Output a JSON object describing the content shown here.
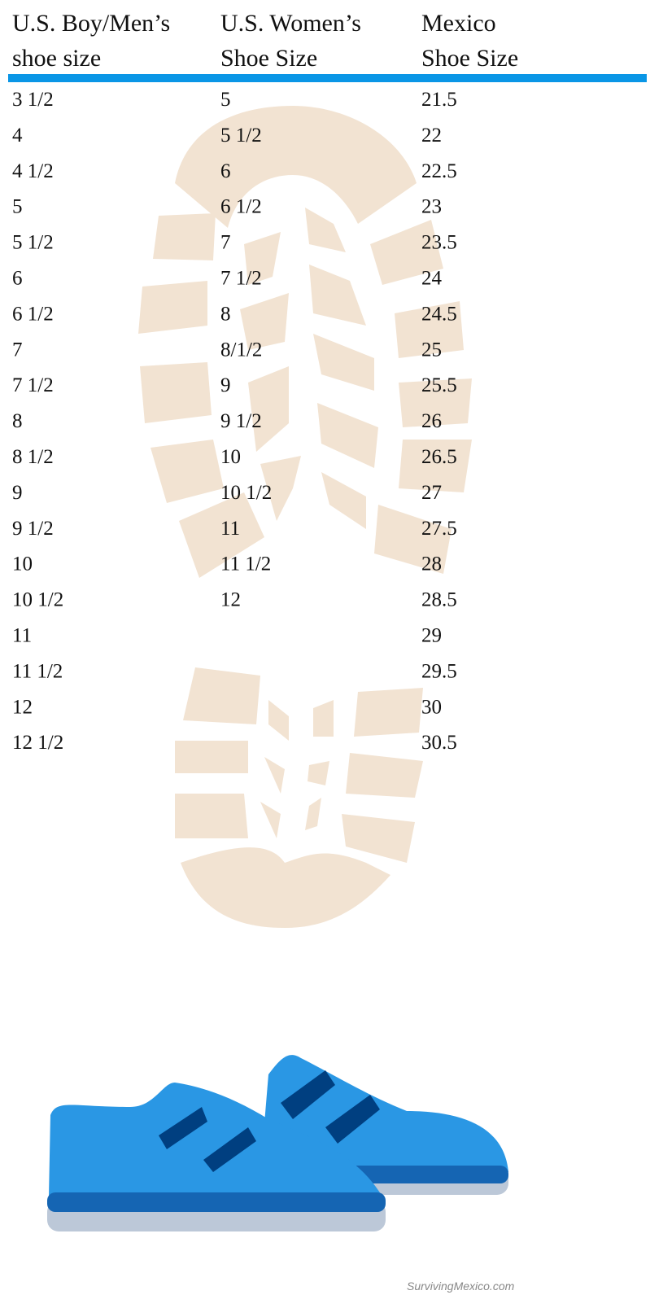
{
  "columns": [
    {
      "header": [
        "U.S. Boy/Men’s",
        "shoe size"
      ],
      "values": [
        "3 1/2",
        "4",
        "4 1/2",
        "5",
        "5 1/2",
        "6",
        "6 1/2",
        "7",
        "7 1/2",
        "8",
        "8 1/2",
        "9",
        "9 1/2",
        "10",
        "10 1/2",
        "11",
        "11 1/2",
        "12",
        "12 1/2"
      ]
    },
    {
      "header": [
        "U.S. Women’s",
        "Shoe Size"
      ],
      "values": [
        "5",
        "5 1/2",
        "6",
        "6 1/2",
        "7",
        "7 1/2",
        "8",
        "8/1/2",
        "9",
        "9 1/2",
        "10",
        "10 1/2",
        "11",
        "11 1/2",
        "12"
      ]
    },
    {
      "header": [
        "Mexico",
        "Shoe Size"
      ],
      "values": [
        "21.5",
        "22",
        "22.5",
        "23",
        "23.5",
        "24",
        "24.5",
        "25",
        "25.5",
        "26",
        "26.5",
        "27",
        "27.5",
        "28",
        "28.5",
        "29",
        "29.5",
        "30",
        "30.5"
      ]
    }
  ],
  "footer": "SurvivingMexico.com"
}
